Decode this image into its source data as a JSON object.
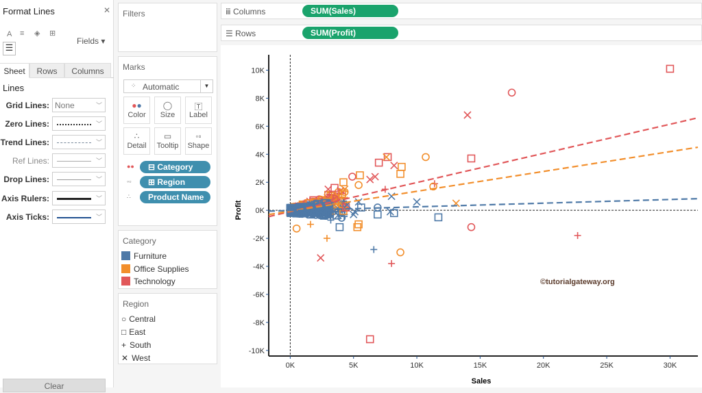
{
  "format_panel": {
    "title": "Format Lines",
    "fields_label": "Fields ▾",
    "tabs": [
      "Sheet",
      "Rows",
      "Columns"
    ],
    "section": "Lines",
    "rows": [
      {
        "label": "Grid Lines:",
        "value": "None"
      },
      {
        "label": "Zero Lines:"
      },
      {
        "label": "Trend Lines:"
      },
      {
        "label": "Ref Lines:"
      },
      {
        "label": "Drop Lines:"
      },
      {
        "label": "Axis Rulers:"
      },
      {
        "label": "Axis Ticks:"
      }
    ],
    "clear_label": "Clear"
  },
  "filters": {
    "title": "Filters"
  },
  "marks": {
    "title": "Marks",
    "type": "Automatic",
    "buttons": [
      "Color",
      "Size",
      "Label",
      "Detail",
      "Tooltip",
      "Shape"
    ],
    "pills": [
      "⊟ Category",
      "⊞ Region",
      "Product Name"
    ]
  },
  "category_legend": {
    "title": "Category",
    "items": [
      {
        "label": "Furniture",
        "color": "#4e79a7"
      },
      {
        "label": "Office Supplies",
        "color": "#f28e2b"
      },
      {
        "label": "Technology",
        "color": "#e15759"
      }
    ]
  },
  "region_legend": {
    "title": "Region",
    "items": [
      {
        "label": "Central",
        "shape": "circle"
      },
      {
        "label": "East",
        "shape": "square"
      },
      {
        "label": "South",
        "shape": "plus"
      },
      {
        "label": "West",
        "shape": "cross"
      }
    ]
  },
  "shelves": {
    "columns_label": "Columns",
    "columns_pill": "SUM(Sales)",
    "rows_label": "Rows",
    "rows_pill": "SUM(Profit)"
  },
  "chart_data": {
    "type": "scatter",
    "xlabel": "Sales",
    "ylabel": "Profit",
    "xlim": [
      -1700,
      32200
    ],
    "ylim": [
      -10400,
      11100
    ],
    "xticks": [
      {
        "v": 0,
        "l": "0K"
      },
      {
        "v": 5000,
        "l": "5K"
      },
      {
        "v": 10000,
        "l": "10K"
      },
      {
        "v": 15000,
        "l": "15K"
      },
      {
        "v": 20000,
        "l": "20K"
      },
      {
        "v": 25000,
        "l": "25K"
      },
      {
        "v": 30000,
        "l": "30K"
      }
    ],
    "yticks": [
      {
        "v": 10000,
        "l": "10K"
      },
      {
        "v": 8000,
        "l": "8K"
      },
      {
        "v": 6000,
        "l": "6K"
      },
      {
        "v": 4000,
        "l": "4K"
      },
      {
        "v": 2000,
        "l": "2K"
      },
      {
        "v": 0,
        "l": "0K"
      },
      {
        "v": -2000,
        "l": "-2K"
      },
      {
        "v": -4000,
        "l": "-4K"
      },
      {
        "v": -6000,
        "l": "-6K"
      },
      {
        "v": -8000,
        "l": "-8K"
      },
      {
        "v": -10000,
        "l": "-10K"
      }
    ],
    "colors": {
      "F": "#4e79a7",
      "O": "#f28e2b",
      "T": "#e15759"
    },
    "trend_lines": [
      {
        "cat": "T",
        "y_at_xmin": -450,
        "y_at_xmax": 6600
      },
      {
        "cat": "O",
        "y_at_xmin": -300,
        "y_at_xmax": 4500
      },
      {
        "cat": "F",
        "y_at_xmin": -60,
        "y_at_xmax": 830
      }
    ],
    "points": [
      [
        "T",
        "E",
        30000,
        10100
      ],
      [
        "T",
        "C",
        17500,
        8400
      ],
      [
        "T",
        "W",
        14000,
        6800
      ],
      [
        "T",
        "E",
        14300,
        3700
      ],
      [
        "O",
        "C",
        10700,
        3800
      ],
      [
        "T",
        "C",
        14300,
        -1200
      ],
      [
        "T",
        "S",
        22700,
        -1800
      ],
      [
        "T",
        "S",
        8000,
        -3800
      ],
      [
        "T",
        "W",
        2400,
        -3400
      ],
      [
        "T",
        "E",
        6300,
        -9200
      ],
      [
        "O",
        "C",
        8700,
        -3000
      ],
      [
        "F",
        "S",
        6600,
        -2800
      ],
      [
        "O",
        "S",
        2900,
        -2000
      ],
      [
        "F",
        "W",
        10000,
        600
      ],
      [
        "F",
        "E",
        11700,
        -500
      ],
      [
        "O",
        "W",
        13100,
        500
      ],
      [
        "T",
        "S",
        11400,
        1900
      ],
      [
        "O",
        "C",
        11300,
        1700
      ],
      [
        "O",
        "E",
        8800,
        3100
      ],
      [
        "O",
        "E",
        8700,
        2600
      ],
      [
        "O",
        "E",
        5500,
        2500
      ],
      [
        "O",
        "E",
        4200,
        2000
      ],
      [
        "T",
        "E",
        7000,
        3400
      ],
      [
        "T",
        "E",
        7700,
        3800
      ],
      [
        "T",
        "C",
        4900,
        2400
      ],
      [
        "T",
        "W",
        6300,
        2200
      ],
      [
        "T",
        "W",
        6700,
        2400
      ],
      [
        "T",
        "W",
        8200,
        3200
      ],
      [
        "O",
        "W",
        7600,
        3800
      ],
      [
        "O",
        "C",
        5400,
        1800
      ],
      [
        "T",
        "S",
        7500,
        1500
      ],
      [
        "F",
        "W",
        8000,
        1000
      ],
      [
        "F",
        "X",
        7900,
        -100
      ],
      [
        "F",
        "E",
        8200,
        -200
      ],
      [
        "F",
        "C",
        6900,
        200
      ],
      [
        "F",
        "E",
        6900,
        -300
      ],
      [
        "F",
        "W",
        5000,
        -300
      ],
      [
        "F",
        "E",
        3900,
        -1200
      ],
      [
        "F",
        "S",
        3200,
        -700
      ],
      [
        "O",
        "E",
        5400,
        -1000
      ],
      [
        "O",
        "E",
        5300,
        -1200
      ],
      [
        "O",
        "C",
        500,
        -1300
      ],
      [
        "O",
        "S",
        1600,
        -1000
      ],
      [
        "F",
        "W",
        4500,
        400
      ],
      [
        "F",
        "W",
        5400,
        600
      ],
      [
        "O",
        "C",
        3800,
        1300
      ],
      [
        "O",
        "E",
        3000,
        1100
      ],
      [
        "T",
        "E",
        3500,
        1600
      ],
      [
        "T",
        "W",
        3000,
        1500
      ],
      [
        "O",
        "W",
        4300,
        1500
      ],
      [
        "F",
        "E",
        5600,
        200
      ],
      [
        "F",
        "W",
        5100,
        -100
      ]
    ]
  },
  "watermark": "©tutorialgateway.org"
}
